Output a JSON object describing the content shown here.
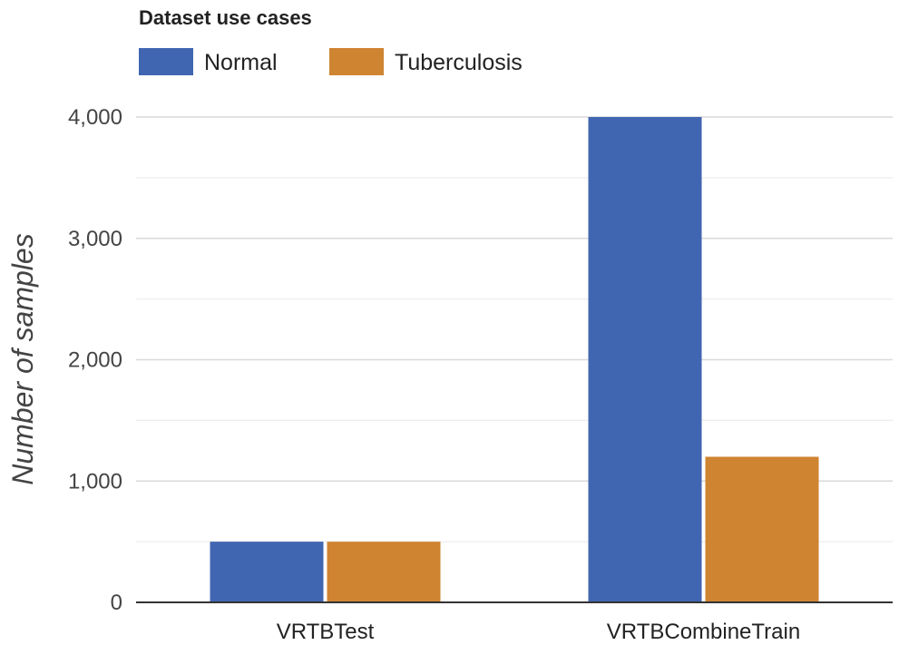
{
  "chart_data": {
    "type": "bar",
    "title": "Dataset use cases",
    "categories": [
      "VRTBTest",
      "VRTBCombineTrain"
    ],
    "series": [
      {
        "name": "Normal",
        "values": [
          500,
          4000
        ],
        "color": "#4166b1"
      },
      {
        "name": "Tuberculosis",
        "values": [
          500,
          1200
        ],
        "color": "#cf8431"
      }
    ],
    "xlabel": "",
    "ylabel": "Number of samples",
    "ylim": [
      0,
      4000
    ],
    "yticks": [
      0,
      1000,
      2000,
      3000,
      4000
    ],
    "ytick_labels": [
      "0",
      "1,000",
      "2,000",
      "3,000",
      "4,000"
    ],
    "grid": true,
    "legend_position": "top-left"
  }
}
